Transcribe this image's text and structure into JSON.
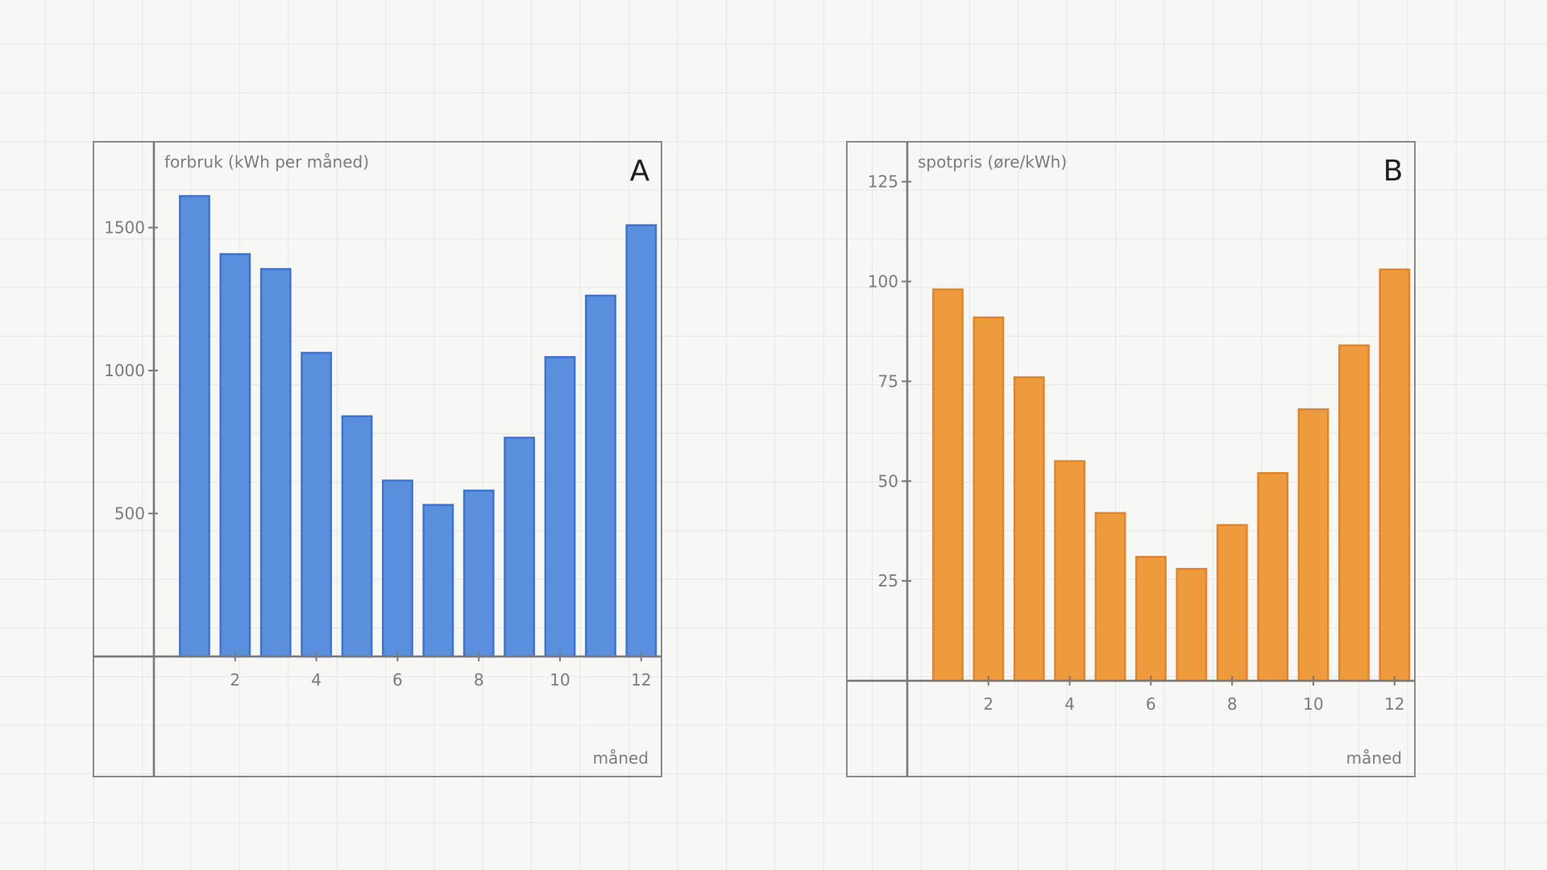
{
  "colors": {
    "background": "#f7f7f5",
    "gridline": "#e6e6e4",
    "frame": "#8a8a8a",
    "axis": "#7a7a7a",
    "text_muted": "#7c7c7c",
    "panel_letter": "#1f1f1f"
  },
  "chart_data": [
    {
      "type": "bar",
      "panel_label": "A",
      "title": "",
      "xlabel": "måned",
      "ylabel": "forbruk (kWh per måned)",
      "x": [
        1,
        2,
        3,
        4,
        5,
        6,
        7,
        8,
        9,
        10,
        11,
        12
      ],
      "values": [
        1610,
        1407,
        1355,
        1062,
        840,
        615,
        530,
        580,
        765,
        1047,
        1262,
        1508
      ],
      "x_ticks": [
        2,
        4,
        6,
        8,
        10,
        12
      ],
      "y_ticks": [
        500,
        1000,
        1500
      ],
      "xlim": [
        -0.5,
        12.5
      ],
      "ylim": [
        -420,
        1800
      ],
      "grid": false,
      "legend": "none",
      "bar_color": "#5a8fdd",
      "bar_edge_color": "#3d74cf"
    },
    {
      "type": "bar",
      "panel_label": "B",
      "title": "",
      "xlabel": "måned",
      "ylabel": "spotpris (øre/kWh)",
      "x": [
        1,
        2,
        3,
        4,
        5,
        6,
        7,
        8,
        9,
        10,
        11,
        12
      ],
      "values": [
        98,
        91,
        76,
        55,
        42,
        31,
        28,
        39,
        52,
        68,
        84,
        103
      ],
      "x_ticks": [
        2,
        4,
        6,
        8,
        10,
        12
      ],
      "y_ticks": [
        25,
        50,
        75,
        100,
        125
      ],
      "xlim": [
        -0.5,
        12.5
      ],
      "ylim": [
        -24,
        135
      ],
      "grid": false,
      "legend": "none",
      "bar_color": "#ed9b3c",
      "bar_edge_color": "#e3832a"
    }
  ]
}
